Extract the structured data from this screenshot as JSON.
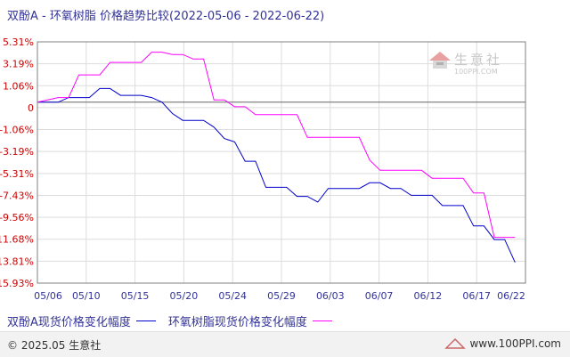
{
  "title": "双酚A - 环氧树脂 价格趋势比较(2022-05-06 - 2022-06-22)",
  "chart_data": {
    "type": "line",
    "ylabels": [
      "5.31%",
      "3.19%",
      "1.06%",
      "0",
      "-1.06%",
      "-3.19%",
      "-5.31%",
      "-7.43%",
      "-9.56%",
      "-11.68%",
      "-13.81%",
      "-15.93%"
    ],
    "ylim": [
      -15.93,
      5.31
    ],
    "xlabels": [
      "05/06",
      "05/10",
      "05/15",
      "05/20",
      "05/24",
      "05/29",
      "06/03",
      "06/07",
      "06/12",
      "06/17",
      "06/22"
    ],
    "xlim": [
      0,
      47
    ],
    "grid": true,
    "legend_position": "bottom",
    "series": [
      {
        "name": "双酚A现货价格变化幅度",
        "color": "#0000cc",
        "points": [
          [
            0,
            0
          ],
          [
            2,
            0
          ],
          [
            3,
            0.4
          ],
          [
            4,
            0.4
          ],
          [
            5,
            0.4
          ],
          [
            6,
            1.2
          ],
          [
            7,
            1.2
          ],
          [
            8,
            0.6
          ],
          [
            9,
            0.6
          ],
          [
            10,
            0.6
          ],
          [
            11,
            0.4
          ],
          [
            12,
            0
          ],
          [
            13,
            -1
          ],
          [
            14,
            -1.6
          ],
          [
            15,
            -1.6
          ],
          [
            16,
            -1.6
          ],
          [
            17,
            -2.2
          ],
          [
            18,
            -3.2
          ],
          [
            19,
            -3.5
          ],
          [
            20,
            -5.2
          ],
          [
            21,
            -5.2
          ],
          [
            22,
            -7.5
          ],
          [
            23,
            -7.5
          ],
          [
            24,
            -7.5
          ],
          [
            25,
            -8.3
          ],
          [
            26,
            -8.3
          ],
          [
            27,
            -8.8
          ],
          [
            28,
            -7.6
          ],
          [
            29,
            -7.6
          ],
          [
            30,
            -7.6
          ],
          [
            31,
            -7.6
          ],
          [
            32,
            -7.1
          ],
          [
            33,
            -7.1
          ],
          [
            34,
            -7.6
          ],
          [
            35,
            -7.6
          ],
          [
            36,
            -8.2
          ],
          [
            37,
            -8.2
          ],
          [
            38,
            -8.2
          ],
          [
            39,
            -9.1
          ],
          [
            40,
            -9.1
          ],
          [
            41,
            -9.1
          ],
          [
            42,
            -10.9
          ],
          [
            43,
            -10.9
          ],
          [
            44,
            -12.1
          ],
          [
            45,
            -12.1
          ],
          [
            46,
            -14.1
          ]
        ]
      },
      {
        "name": "环氧树脂现货价格变化幅度",
        "color": "#ff00ff",
        "points": [
          [
            0,
            0
          ],
          [
            2,
            0.4
          ],
          [
            3,
            0.4
          ],
          [
            4,
            2.4
          ],
          [
            5,
            2.4
          ],
          [
            6,
            2.4
          ],
          [
            7,
            3.5
          ],
          [
            8,
            3.5
          ],
          [
            9,
            3.5
          ],
          [
            10,
            3.5
          ],
          [
            11,
            4.4
          ],
          [
            12,
            4.4
          ],
          [
            13,
            4.2
          ],
          [
            14,
            4.2
          ],
          [
            15,
            3.8
          ],
          [
            16,
            3.8
          ],
          [
            17,
            0.2
          ],
          [
            18,
            0.2
          ],
          [
            19,
            -0.4
          ],
          [
            20,
            -0.4
          ],
          [
            21,
            -1.1
          ],
          [
            22,
            -1.1
          ],
          [
            23,
            -1.1
          ],
          [
            24,
            -1.1
          ],
          [
            25,
            -1.1
          ],
          [
            26,
            -3.1
          ],
          [
            27,
            -3.1
          ],
          [
            28,
            -3.1
          ],
          [
            29,
            -3.1
          ],
          [
            30,
            -3.1
          ],
          [
            31,
            -3.1
          ],
          [
            32,
            -5.1
          ],
          [
            33,
            -6.0
          ],
          [
            34,
            -6.0
          ],
          [
            35,
            -6.0
          ],
          [
            36,
            -6.0
          ],
          [
            37,
            -6.0
          ],
          [
            38,
            -6.7
          ],
          [
            39,
            -6.7
          ],
          [
            40,
            -6.7
          ],
          [
            41,
            -6.7
          ],
          [
            42,
            -8.0
          ],
          [
            43,
            -8.0
          ],
          [
            44,
            -11.9
          ],
          [
            45,
            -11.9
          ],
          [
            46,
            -11.9
          ]
        ]
      }
    ]
  },
  "watermark": {
    "text": "生意社",
    "sub": "100PPI.COM"
  },
  "footer": {
    "copyright": "© 2025.05 生意社",
    "site": "www.100PPI.com"
  }
}
